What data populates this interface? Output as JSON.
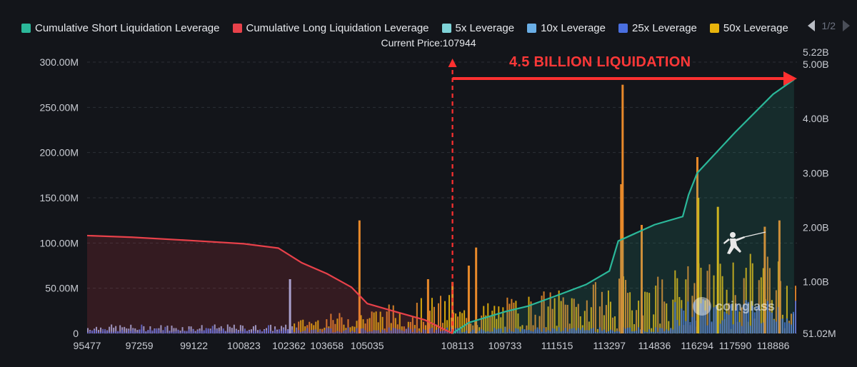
{
  "legend": {
    "items": [
      {
        "label": "Cumulative Short Liquidation Leverage",
        "color": "#2bb89a"
      },
      {
        "label": "Cumulative Long Liquidation Leverage",
        "color": "#e8414a"
      },
      {
        "label": "5x Leverage",
        "color": "#7fd3d8"
      },
      {
        "label": "10x Leverage",
        "color": "#6aaee6"
      },
      {
        "label": "25x Leverage",
        "color": "#4a6fe0"
      },
      {
        "label": "50x Leverage",
        "color": "#e8b40c"
      }
    ],
    "page": "1/2"
  },
  "current_price_label": "Current Price:107944",
  "annotation": "4.5 BILLION LIQUIDATION",
  "watermark": "coinglass",
  "colors": {
    "background": "#13151a",
    "grid": "#2c2f36",
    "short_line": "#2bb89a",
    "long_line": "#e8414a",
    "bar_orange": "#e8892a",
    "bar_yellow": "#e8b40c",
    "bar_blue": "#4a6fe0",
    "bar_light": "#9fb4e8",
    "annotation_red": "#ff3030"
  },
  "chart_data": {
    "type": "bar",
    "current_price": 107944,
    "x_ticks": [
      "95477",
      "97259",
      "99122",
      "100823",
      "102362",
      "103658",
      "105035",
      "108113",
      "109733",
      "111515",
      "113297",
      "114836",
      "116294",
      "117590",
      "118886"
    ],
    "x_range": [
      95477,
      119700
    ],
    "y_left": {
      "ticks": [
        "0",
        "50.00M",
        "100.00M",
        "150.00M",
        "200.00M",
        "250.00M",
        "300.00M"
      ],
      "range": [
        0,
        300000000
      ]
    },
    "y_right": {
      "ticks": [
        "51.02M",
        "1.00B",
        "2.00B",
        "3.00B",
        "4.00B",
        "5.00B",
        "5.22B"
      ],
      "range": [
        51020000,
        5220000000
      ]
    },
    "series": [
      {
        "name": "Cumulative Long Liquidation Leverage",
        "axis": "right",
        "type": "area",
        "points": [
          [
            95477,
            1850000000.0
          ],
          [
            97000,
            1820000000.0
          ],
          [
            99000,
            1760000000.0
          ],
          [
            100823,
            1700000000.0
          ],
          [
            102000,
            1620000000.0
          ],
          [
            102800,
            1350000000.0
          ],
          [
            103658,
            1150000000.0
          ],
          [
            104500,
            900000000.0
          ],
          [
            105035,
            600000000.0
          ],
          [
            106000,
            450000000.0
          ],
          [
            107000,
            300000000.0
          ],
          [
            107944,
            51020000.0
          ]
        ]
      },
      {
        "name": "Cumulative Short Liquidation Leverage",
        "axis": "right",
        "type": "area",
        "points": [
          [
            107944,
            51020000.0
          ],
          [
            108500,
            250000000.0
          ],
          [
            109733,
            450000000.0
          ],
          [
            110500,
            550000000.0
          ],
          [
            111515,
            750000000.0
          ],
          [
            112500,
            950000000.0
          ],
          [
            113297,
            1200000000.0
          ],
          [
            113600,
            1750000000.0
          ],
          [
            114836,
            2050000000.0
          ],
          [
            115800,
            2200000000.0
          ],
          [
            116000,
            2600000000.0
          ],
          [
            116294,
            3000000000.0
          ],
          [
            117590,
            3750000000.0
          ],
          [
            118886,
            4450000000.0
          ],
          [
            119600,
            4720000000.0
          ]
        ]
      }
    ],
    "bars_major": [
      {
        "x": 102400,
        "value": 60000000,
        "color": "light"
      },
      {
        "x": 104770,
        "value": 125000000,
        "color": "orange"
      },
      {
        "x": 107110,
        "value": 60000000,
        "color": "orange"
      },
      {
        "x": 107944,
        "value": 57000000,
        "color": "orange"
      },
      {
        "x": 108500,
        "value": 75000000,
        "color": "orange"
      },
      {
        "x": 108750,
        "value": 95000000,
        "color": "orange"
      },
      {
        "x": 113750,
        "value": 275000000,
        "color": "orange"
      },
      {
        "x": 113700,
        "value": 165000000,
        "color": "orange"
      },
      {
        "x": 114400,
        "value": 120000000,
        "color": "orange"
      },
      {
        "x": 116300,
        "value": 195000000,
        "color": "orange"
      },
      {
        "x": 116330,
        "value": 150000000,
        "color": "yellow"
      },
      {
        "x": 117000,
        "value": 140000000,
        "color": "yellow"
      },
      {
        "x": 118600,
        "value": 118000000,
        "color": "orange"
      },
      {
        "x": 119100,
        "value": 125000000,
        "color": "orange"
      }
    ]
  }
}
